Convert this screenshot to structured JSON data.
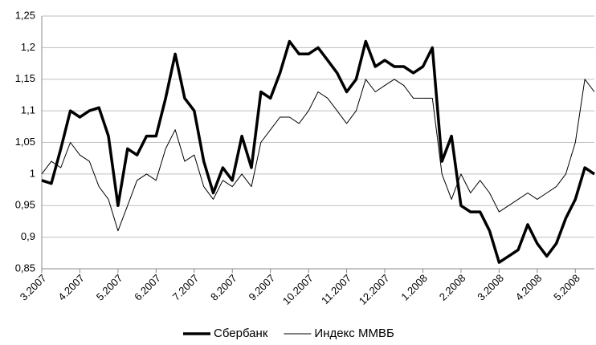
{
  "chart_data": {
    "type": "line",
    "categories": [
      "3.2007",
      null,
      null,
      null,
      "4.2007",
      null,
      null,
      null,
      "5.2007",
      null,
      null,
      null,
      "6.2007",
      null,
      null,
      null,
      "7.2007",
      null,
      null,
      null,
      "8.2007",
      null,
      null,
      null,
      "9.2007",
      null,
      null,
      null,
      "10.2007",
      null,
      null,
      null,
      "11.2007",
      null,
      null,
      null,
      "12.2007",
      null,
      null,
      null,
      "1.2008",
      null,
      null,
      null,
      "2.2008",
      null,
      null,
      null,
      "3.2008",
      null,
      null,
      null,
      "4.2008",
      null,
      null,
      null,
      "5.2008",
      null,
      null
    ],
    "series": [
      {
        "name": "Сбербанк",
        "color": "#000000",
        "values": [
          0.99,
          0.985,
          1.04,
          1.1,
          1.09,
          1.1,
          1.105,
          1.06,
          0.95,
          1.04,
          1.03,
          1.06,
          1.06,
          1.12,
          1.19,
          1.12,
          1.1,
          1.02,
          0.97,
          1.01,
          0.99,
          1.06,
          1.01,
          1.13,
          1.12,
          1.16,
          1.21,
          1.19,
          1.19,
          1.2,
          1.18,
          1.16,
          1.13,
          1.15,
          1.21,
          1.17,
          1.18,
          1.17,
          1.17,
          1.16,
          1.17,
          1.2,
          1.02,
          1.06,
          0.95,
          0.94,
          0.94,
          0.91,
          0.86,
          0.87,
          0.88,
          0.92,
          0.89,
          0.87,
          0.89,
          0.93,
          0.96,
          1.01,
          1.0
        ]
      },
      {
        "name": "Индекс ММВБ",
        "color": "#000000",
        "values": [
          1.0,
          1.02,
          1.01,
          1.05,
          1.03,
          1.02,
          0.98,
          0.96,
          0.91,
          0.95,
          0.99,
          1.0,
          0.99,
          1.04,
          1.07,
          1.02,
          1.03,
          0.98,
          0.96,
          0.99,
          0.98,
          1.0,
          0.98,
          1.05,
          1.07,
          1.09,
          1.09,
          1.08,
          1.1,
          1.13,
          1.12,
          1.1,
          1.08,
          1.1,
          1.15,
          1.13,
          1.14,
          1.15,
          1.14,
          1.12,
          1.12,
          1.12,
          1.0,
          0.96,
          1.0,
          0.97,
          0.99,
          0.97,
          0.94,
          0.95,
          0.96,
          0.97,
          0.96,
          0.97,
          0.98,
          1.0,
          1.05,
          1.15,
          1.13
        ]
      }
    ],
    "ylim": [
      0.85,
      1.25
    ],
    "yticks": [
      {
        "value": 0.85,
        "label": "0,85"
      },
      {
        "value": 0.9,
        "label": "0,9"
      },
      {
        "value": 0.95,
        "label": "0,95"
      },
      1,
      {
        "value": 1.05,
        "label": "1,05"
      },
      {
        "value": 1.1,
        "label": "1,1"
      },
      {
        "value": 1.15,
        "label": "1,15"
      },
      {
        "value": 1.2,
        "label": "1,2"
      },
      {
        "value": 1.25,
        "label": "1,25"
      }
    ],
    "grid": true,
    "legend": "bottom"
  }
}
